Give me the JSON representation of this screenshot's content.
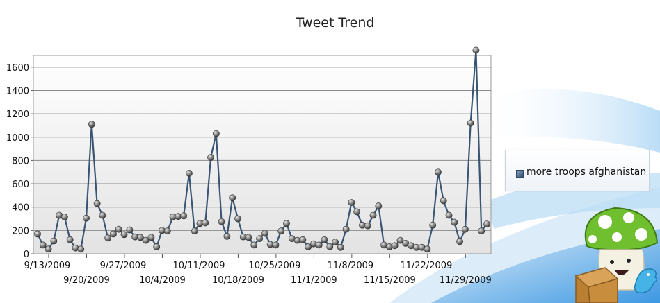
{
  "chart_data": {
    "type": "line",
    "title": "Tweet Trend",
    "xlabel": "",
    "ylabel": "",
    "ylim": [
      0,
      1700
    ],
    "yticks": [
      0,
      200,
      400,
      600,
      800,
      1000,
      1200,
      1400,
      1600
    ],
    "grid": true,
    "legend_placement": "right",
    "x_tick_labels": [
      "9/13/2009",
      "9/20/2009",
      "9/27/2009",
      "10/4/2009",
      "10/11/2009",
      "10/18/2009",
      "10/25/2009",
      "11/1/2009",
      "11/8/2009",
      "11/15/2009",
      "11/22/2009",
      "11/29/2009"
    ],
    "x_start": "9/13/2009",
    "series": [
      {
        "name": "more troops afghanistan",
        "color": "#3a5573",
        "values": [
          170,
          75,
          40,
          110,
          330,
          315,
          120,
          50,
          40,
          305,
          1110,
          430,
          330,
          135,
          170,
          210,
          165,
          205,
          145,
          140,
          115,
          140,
          60,
          200,
          195,
          315,
          320,
          325,
          690,
          195,
          260,
          265,
          825,
          1030,
          275,
          150,
          480,
          300,
          145,
          140,
          75,
          130,
          175,
          80,
          75,
          195,
          260,
          130,
          115,
          120,
          60,
          85,
          75,
          120,
          60,
          100,
          55,
          210,
          440,
          360,
          245,
          240,
          330,
          410,
          75,
          60,
          70,
          115,
          90,
          70,
          55,
          55,
          40,
          245,
          700,
          455,
          330,
          270,
          105,
          210,
          1120,
          1745,
          195,
          255
        ]
      }
    ]
  },
  "colors": {
    "line": "#3a5573",
    "grid": "#8a8a8a",
    "plot_bg_top": "#ffffff",
    "plot_bg_bottom": "#e3e3e3",
    "wave": "#2e8fe0"
  },
  "icons": [
    "mushroom-mascot-icon",
    "cardboard-box-icon",
    "twitter-bird-icon"
  ]
}
